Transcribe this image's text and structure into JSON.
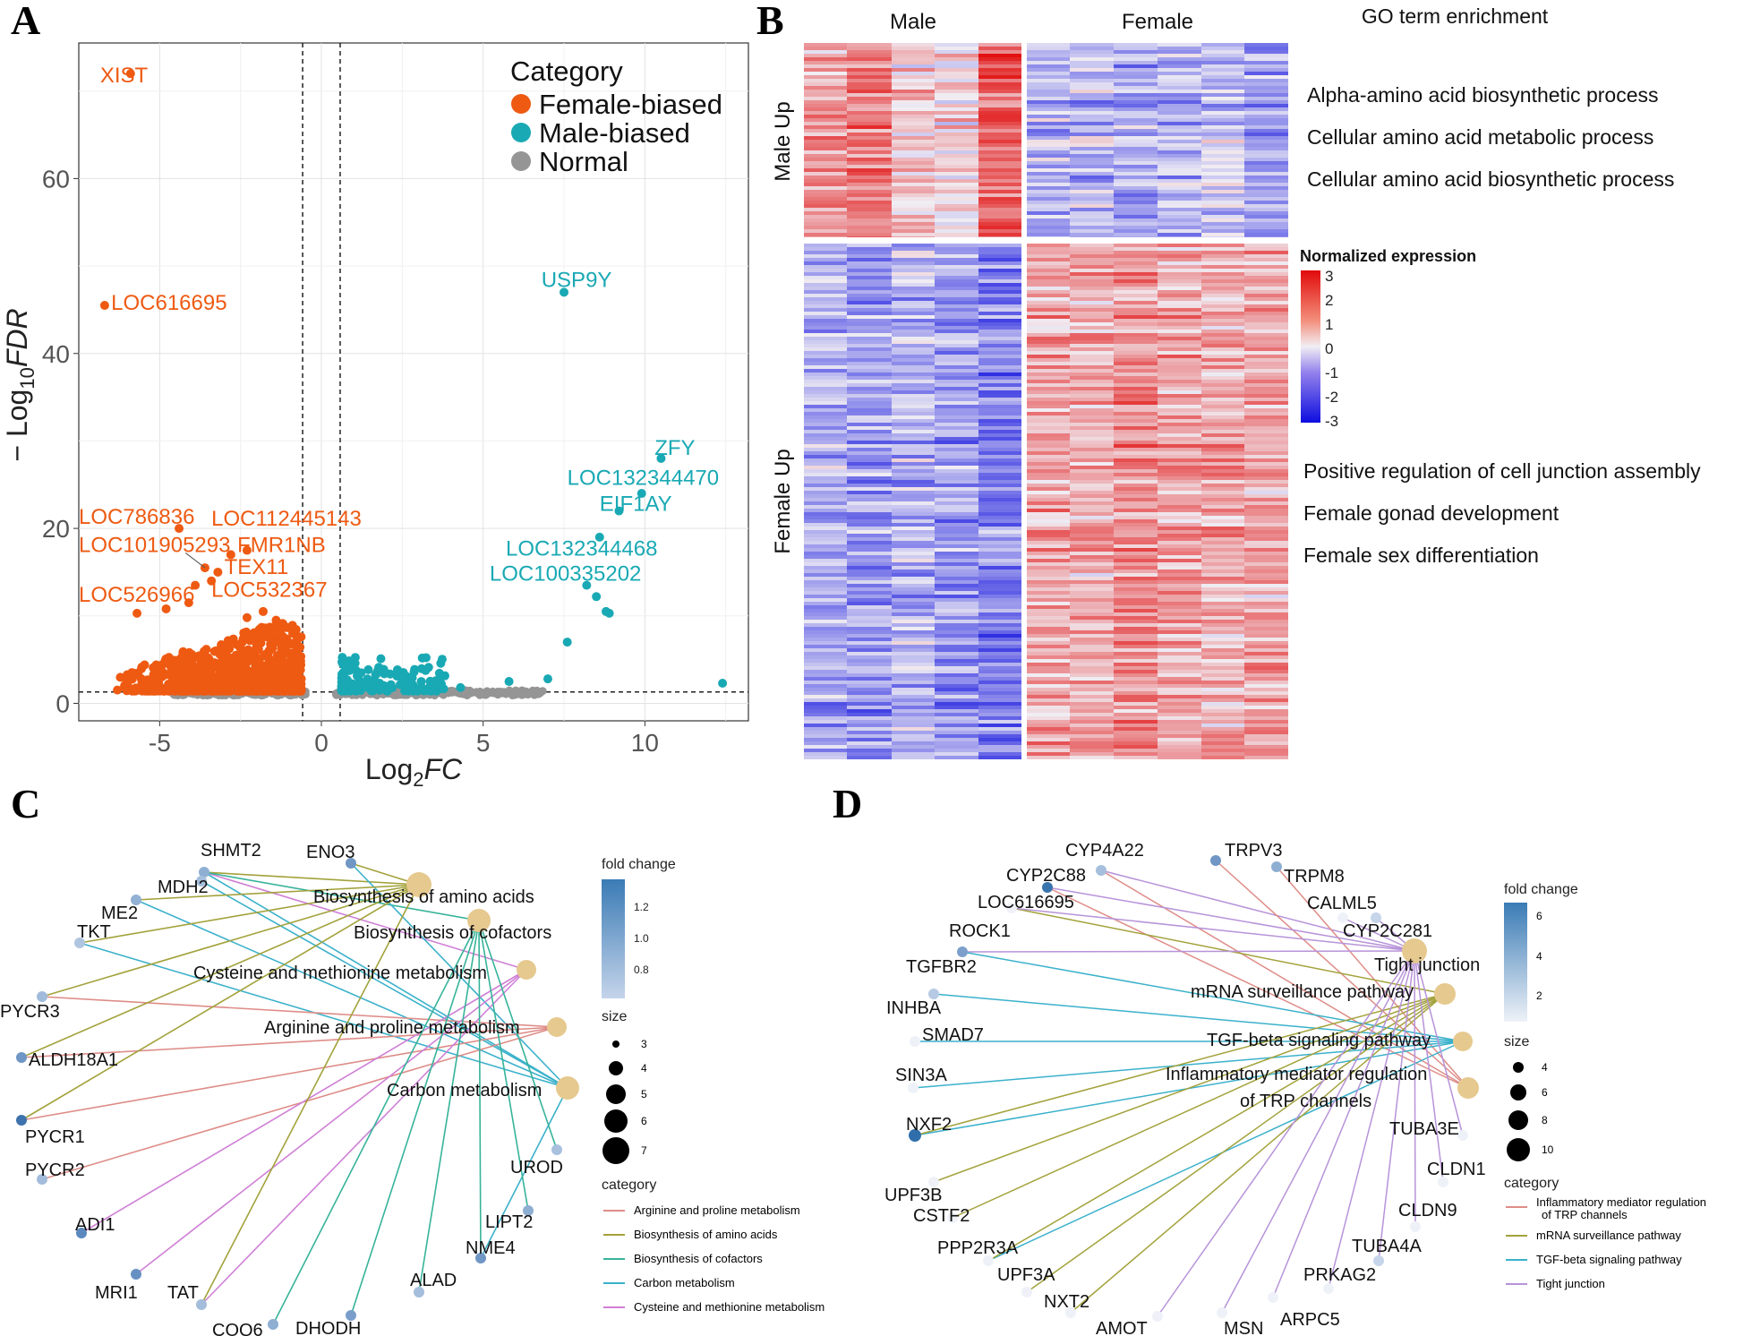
{
  "panels": {
    "a": "A",
    "b": "B",
    "c": "C",
    "d": "D"
  },
  "colors": {
    "female": "#ee5a12",
    "male": "#19a9b4",
    "normal": "#959595",
    "gene_node": "#8fafd2",
    "term_node": "#e6c98f",
    "edge_arginine": "#de8c87",
    "edge_biosynth_aa": "#a3a23c",
    "edge_cofactors": "#37b39a",
    "edge_carbon": "#3bb1cb",
    "edge_cysteine": "#cf7fd6",
    "edge_tight": "#b793d9"
  },
  "volcano": {
    "chart_data": {
      "type": "scatter",
      "xlabel": "Log2FC",
      "ylabel": "−Log10FDR",
      "xlim": [
        -7.5,
        13.2
      ],
      "ylim": [
        -2,
        75.5
      ],
      "xticks": [
        -5,
        0,
        5,
        10
      ],
      "yticks": [
        0,
        20,
        40,
        60
      ],
      "vlines": [
        -0.58,
        0.58
      ],
      "hline": 1.3,
      "grid": true,
      "legend": {
        "title": "Category",
        "placement": "top-right",
        "entries": [
          "Female-biased",
          "Male-biased",
          "Normal"
        ]
      },
      "labeled_points": [
        {
          "label": "XIST",
          "x": -5.9,
          "y": 72,
          "group": "female"
        },
        {
          "label": "LOC616695",
          "x": -6.7,
          "y": 45.5,
          "group": "female"
        },
        {
          "label": "LOC786836",
          "x": -4.4,
          "y": 20,
          "group": "female"
        },
        {
          "label": "LOC112445143",
          "x": -2.3,
          "y": 17.5,
          "group": "female"
        },
        {
          "label": "LOC101905293",
          "x": -3.6,
          "y": 15.5,
          "group": "female"
        },
        {
          "label": "FMR1NB",
          "x": -2.8,
          "y": 17,
          "group": "female"
        },
        {
          "label": "TEX11",
          "x": -3.2,
          "y": 15,
          "group": "female"
        },
        {
          "label": "LOC526966",
          "x": -3.9,
          "y": 13.5,
          "group": "female"
        },
        {
          "label": "LOC532367",
          "x": -3.4,
          "y": 14,
          "group": "female"
        },
        {
          "label": "USP9Y",
          "x": 7.5,
          "y": 47,
          "group": "male"
        },
        {
          "label": "ZFY",
          "x": 10.5,
          "y": 28,
          "group": "male"
        },
        {
          "label": "LOC132344470",
          "x": 9.9,
          "y": 24,
          "group": "male"
        },
        {
          "label": "EIF1AY",
          "x": 9.2,
          "y": 22,
          "group": "male"
        },
        {
          "label": "LOC132344468",
          "x": 8.6,
          "y": 19,
          "group": "male"
        },
        {
          "label": "LOC100335202",
          "x": 8.2,
          "y": 13.5,
          "group": "male"
        }
      ],
      "extra_points": [
        {
          "x": -5.7,
          "y": 10.3,
          "group": "female"
        },
        {
          "x": -4.8,
          "y": 10.8,
          "group": "female"
        },
        {
          "x": -4.1,
          "y": 11.5,
          "group": "female"
        },
        {
          "x": -1.8,
          "y": 10.5,
          "group": "female"
        },
        {
          "x": -2.3,
          "y": 9.8,
          "group": "female"
        },
        {
          "x": -1.4,
          "y": 9.5,
          "group": "female"
        },
        {
          "x": 8.5,
          "y": 12.2,
          "group": "male"
        },
        {
          "x": 8.8,
          "y": 10.5,
          "group": "male"
        },
        {
          "x": 8.9,
          "y": 10.3,
          "group": "male"
        },
        {
          "x": 7.6,
          "y": 7.0,
          "group": "male"
        },
        {
          "x": 5.8,
          "y": 2.5,
          "group": "male"
        },
        {
          "x": 7.0,
          "y": 2.8,
          "group": "male"
        },
        {
          "x": 12.4,
          "y": 2.3,
          "group": "male"
        },
        {
          "x": 4.3,
          "y": 1.8,
          "group": "male"
        },
        {
          "x": 6.6,
          "y": 1.3,
          "group": "normal"
        }
      ]
    },
    "title": "Category",
    "legend": [
      "Female-biased",
      "Male-biased",
      "Normal"
    ]
  },
  "heatmap": {
    "chart_data": {
      "type": "heatmap",
      "columns_groups": [
        "Male",
        "Female"
      ],
      "row_groups": [
        "Male Up",
        "Female Up"
      ],
      "n_columns": [
        5,
        6
      ],
      "colorbar": {
        "title": "Normalized expression",
        "range": [
          -3,
          3
        ],
        "ticks": [
          3,
          2,
          1,
          0,
          -1,
          -2,
          -3
        ]
      }
    },
    "male_label": "Male",
    "female_label": "Female",
    "male_up": "Male Up",
    "female_up": "Female Up",
    "go_title": "GO term enrichment",
    "go_male": [
      "Alpha-amino acid biosynthetic process",
      "Cellular amino acid metabolic process",
      "Cellular amino acid biosynthetic process"
    ],
    "go_female": [
      "Positive regulation of cell junction assembly",
      "Female gonad development",
      "Female sex differentiation"
    ],
    "cb_title": "Normalized expression",
    "cb_ticks": [
      "3",
      "2",
      "1",
      "0",
      "-1",
      "-2",
      "-3"
    ]
  },
  "network_c": {
    "terms": [
      "Biosynthesis of amino acids",
      "Biosynthesis of cofactors",
      "Cysteine and methionine metabolism",
      "Arginine and proline metabolism",
      "Carbon metabolism"
    ],
    "genes": [
      "SHMT2",
      "ENO3",
      "MDH2",
      "ME2",
      "TKT",
      "PYCR3",
      "ALDH18A1",
      "PYCR1",
      "PYCR2",
      "ADI1",
      "MRI1",
      "TAT",
      "COQ6",
      "DHODH",
      "ALAD",
      "NME4",
      "LIPT2",
      "UROD"
    ],
    "legend_fc_title": "fold change",
    "legend_fc_ticks": [
      "1.2",
      "1.0",
      "0.8"
    ],
    "legend_size_title": "size",
    "legend_size_ticks": [
      "3",
      "4",
      "5",
      "6",
      "7"
    ],
    "legend_cat_title": "category",
    "legend_cat": [
      "Arginine and proline metabolism",
      "Biosynthesis of amino acids",
      "Biosynthesis of cofactors",
      "Carbon metabolism",
      "Cysteine and methionine metabolism"
    ]
  },
  "network_d": {
    "terms": [
      "Tight junction",
      "mRNA surveillance pathway",
      "TGF-beta signaling pathway",
      "Inflammatory mediator regulation",
      "of TRP channels"
    ],
    "genes": [
      "CYP4A22",
      "TRPV3",
      "TRPM8",
      "CYP2C88",
      "LOC616695",
      "CALML5",
      "CYP2C281",
      "ROCK1",
      "TGFBR2",
      "INHBA",
      "SMAD7",
      "SIN3A",
      "NXF2",
      "UPF3B",
      "CSTF2",
      "PPP2R3A",
      "UPF3A",
      "NXT2",
      "AMOT",
      "MSN",
      "ARPC5",
      "PRKAG2",
      "TUBA4A",
      "CLDN9",
      "CLDN1",
      "TUBA3E"
    ],
    "legend_fc_title": "fold change",
    "legend_fc_ticks": [
      "6",
      "4",
      "2"
    ],
    "legend_size_title": "size",
    "legend_size_ticks": [
      "4",
      "6",
      "8",
      "10"
    ],
    "legend_cat_title": "category",
    "legend_cat": [
      "Inflammatory mediator regulation",
      "of TRP channels",
      "mRNA surveillance pathway",
      "TGF-beta signaling pathway",
      "Tight junction"
    ]
  }
}
